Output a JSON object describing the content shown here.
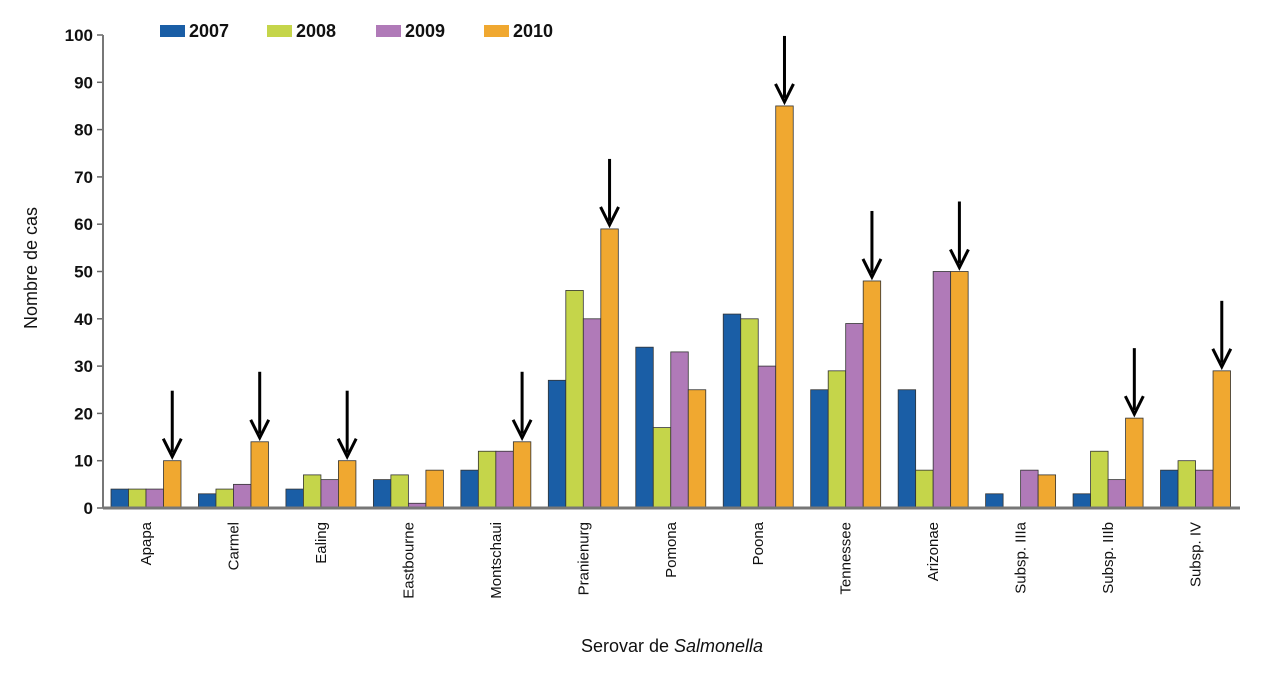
{
  "chart_data": {
    "type": "bar",
    "title": "",
    "xlabel_prefix": "Serovar de ",
    "xlabel_italic": "Salmonella",
    "ylabel": "Nombre de cas",
    "ylim": [
      0,
      100
    ],
    "yticks": [
      0,
      10,
      20,
      30,
      40,
      50,
      60,
      70,
      80,
      90,
      100
    ],
    "legend_position": "top-left",
    "categories": [
      "Apapa",
      "Carmel",
      "Ealing",
      "Eastbourne",
      "Montschaui",
      "Pranienurg",
      "Pomona",
      "Poona",
      "Tennessee",
      "Arizonae",
      "Subsp. IIIa",
      "Subsp. IIIb",
      "Subsp. IV"
    ],
    "series": [
      {
        "name": "2007",
        "color": "#1a5ea6",
        "values": [
          4,
          3,
          4,
          6,
          8,
          27,
          34,
          41,
          25,
          25,
          3,
          3,
          8
        ]
      },
      {
        "name": "2008",
        "color": "#c5d54a",
        "values": [
          4,
          4,
          7,
          7,
          12,
          46,
          17,
          40,
          29,
          8,
          0,
          12,
          10
        ]
      },
      {
        "name": "2009",
        "color": "#b07ab8",
        "values": [
          4,
          5,
          6,
          1,
          12,
          40,
          33,
          30,
          39,
          50,
          8,
          6,
          8
        ]
      },
      {
        "name": "2010",
        "color": "#f0a830",
        "values": [
          10,
          14,
          10,
          8,
          14,
          59,
          25,
          85,
          48,
          50,
          7,
          19,
          29
        ]
      }
    ],
    "annotations": {
      "type": "down-arrow",
      "series": "2010",
      "marked_categories": [
        "Apapa",
        "Carmel",
        "Ealing",
        "Montschaui",
        "Pranienurg",
        "Poona",
        "Tennessee",
        "Arizonae",
        "Subsp. IIIb",
        "Subsp. IV"
      ]
    }
  }
}
